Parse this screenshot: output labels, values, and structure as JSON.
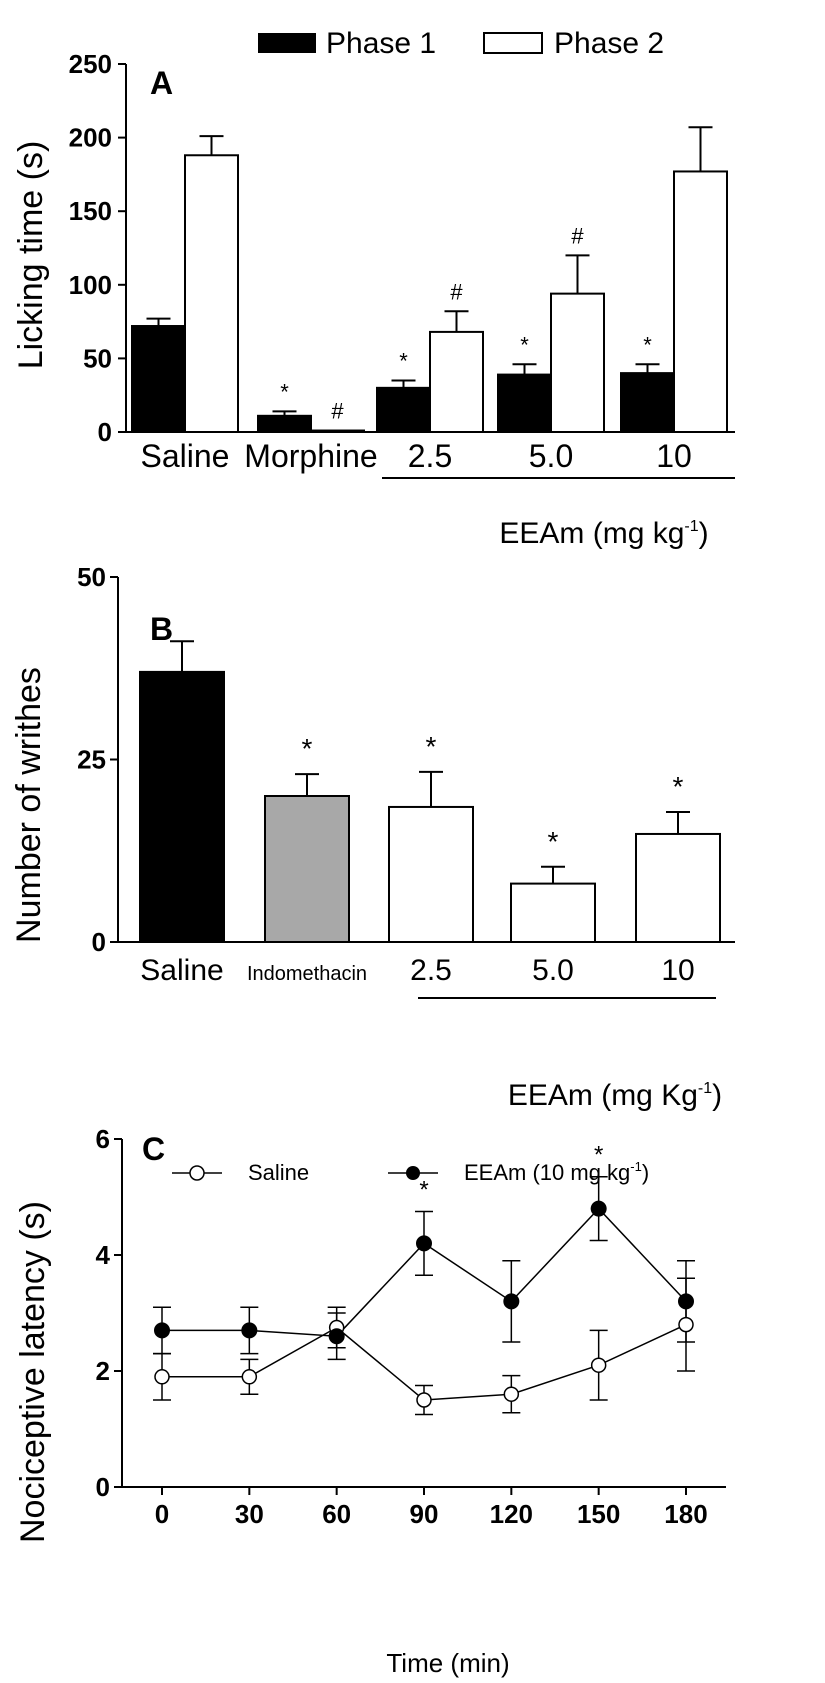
{
  "chart_data": [
    {
      "panel": "A",
      "type": "bar",
      "ylabel": "Licking time (s)",
      "ylim": [
        0,
        250
      ],
      "yticks": [
        "0",
        "50",
        "100",
        "150",
        "200",
        "250"
      ],
      "categories": [
        "Saline",
        "Morphine",
        "2.5",
        "5.0",
        "10"
      ],
      "group_label": "EEAm (mg kg",
      "group_label_sup": "-1",
      "group_label_close": ")",
      "legend_position": "top",
      "series": [
        {
          "name": "Phase 1",
          "color": "#000000",
          "values": [
            72,
            11,
            30,
            39,
            40
          ],
          "errors": [
            5,
            3,
            5,
            7,
            6
          ],
          "markers": [
            "",
            "*",
            "*",
            "*",
            "*"
          ]
        },
        {
          "name": "Phase 2",
          "color": "#ffffff",
          "values": [
            188,
            1,
            68,
            94,
            177
          ],
          "errors": [
            13,
            0,
            14,
            26,
            30
          ],
          "markers": [
            "",
            "#",
            "#",
            "#",
            ""
          ]
        }
      ]
    },
    {
      "panel": "B",
      "type": "bar",
      "ylabel": "Number of writhes",
      "ylim": [
        0,
        50
      ],
      "yticks": [
        "0",
        "25",
        "50"
      ],
      "categories": [
        "Saline",
        "Indomethacin",
        "2.5",
        "5.0",
        "10"
      ],
      "group_label": "EEAm (mg Kg",
      "group_label_sup": "-1",
      "group_label_close": ")",
      "series": [
        {
          "values": [
            37,
            20,
            18.5,
            8,
            14.8
          ],
          "errors": [
            4.2,
            3,
            4.8,
            2.3,
            3
          ],
          "colors": [
            "#000000",
            "#a8a8a8",
            "#ffffff",
            "#ffffff",
            "#ffffff"
          ],
          "markers": [
            "",
            "*",
            "*",
            "*",
            "*"
          ]
        }
      ]
    },
    {
      "panel": "C",
      "type": "line",
      "xlabel": "Time (min)",
      "ylabel": "Nociceptive latency (s)",
      "xlim": [
        0,
        180
      ],
      "ylim": [
        0,
        6
      ],
      "x": [
        0,
        30,
        60,
        90,
        120,
        150,
        180
      ],
      "xticks": [
        "0",
        "30",
        "60",
        "90",
        "120",
        "150",
        "180"
      ],
      "yticks": [
        "0",
        "2",
        "4",
        "6"
      ],
      "legend_position": "top",
      "series": [
        {
          "name": "Saline",
          "marker": "open-circle",
          "values": [
            1.9,
            1.9,
            2.75,
            1.5,
            1.6,
            2.1,
            2.8
          ],
          "errors": [
            0.4,
            0.3,
            0.35,
            0.25,
            0.32,
            0.6,
            0.8
          ]
        },
        {
          "name": "EEAm (10 mg kg",
          "name_sup": "-1",
          "name_close": ")",
          "marker": "filled-circle",
          "values": [
            2.7,
            2.7,
            2.6,
            4.2,
            3.2,
            4.8,
            3.2
          ],
          "errors": [
            0.4,
            0.4,
            0.4,
            0.55,
            0.7,
            0.55,
            0.7
          ]
        }
      ],
      "markers": [
        {
          "x": 90,
          "text": "*"
        },
        {
          "x": 150,
          "text": "*"
        }
      ]
    }
  ]
}
